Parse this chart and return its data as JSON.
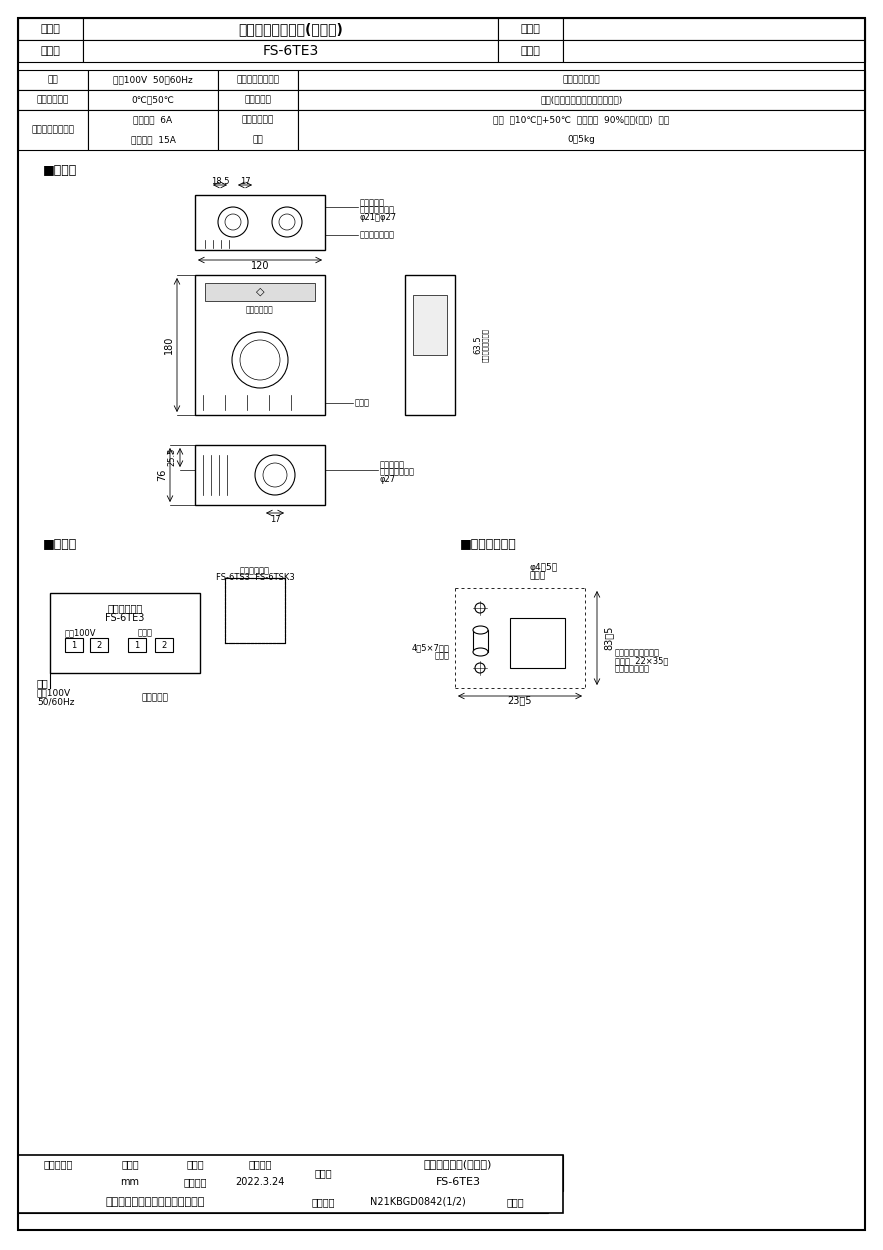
{
  "bg_color": "#ffffff",
  "border_color": "#000000",
  "title_row1_left": "品　名",
  "title_row1_center": "三菱温度スイッチ(露出形)",
  "title_row1_right1": "台　数",
  "title_row1_right2": "",
  "title_row2_left": "形　名",
  "title_row2_center": "FS-6TE3",
  "title_row2_right1": "記　号",
  "title_row2_right2": "",
  "spec_table": [
    [
      "電源",
      "単相100V  50／60Hz",
      "切換スイッチ機能",
      "自動、切、連続"
    ],
    [
      "設定温度範囲",
      "0℃～50℃",
      "サーミスタ",
      "内蔵(別売延長センサー接続可能)"
    ],
    [
      "接続可能負荷容量",
      "定格電流  6A\n起動電流  15A",
      "使用周囲条件\n質量",
      "温度  －10℃～+50℃  相対湿度  90%以下(常温)  屋内\n0．5kg"
    ]
  ],
  "section_gaikan": "■外形図",
  "section_wiring": "■結線図",
  "section_mounting": "■商品取付穴図",
  "footer_row1": [
    "第３角図法",
    "単　位",
    "尺　度",
    "作成日付",
    "品　名",
    "温度スイッチ(露出形)"
  ],
  "footer_row2": [
    "",
    "mm",
    "非比例尺",
    "2022.3.24",
    "形　名",
    "FS-6TE3"
  ],
  "footer_row3": [
    "三菱電機株式会社　中津川製作所",
    "",
    "整理番号",
    "N21KBGD0842(1/2)",
    "仕様書"
  ]
}
